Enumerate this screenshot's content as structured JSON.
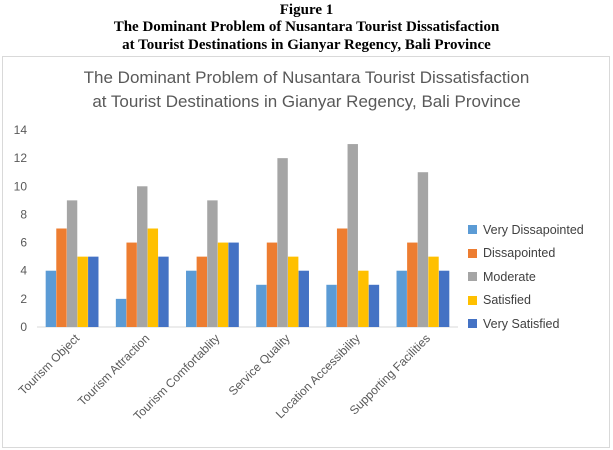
{
  "caption": {
    "figure_label": "Figure 1",
    "line1": "The Dominant Problem of Nusantara Tourist Dissatisfaction",
    "line2": "at Tourist Destinations in Gianyar Regency, Bali Province"
  },
  "chart_data": {
    "type": "bar",
    "title_line1": "The Dominant Problem of Nusantara Tourist Dissatisfaction",
    "title_line2": "at Tourist Destinations in Gianyar Regency, Bali Province",
    "categories": [
      "Tourism Object",
      "Tourism Attraction",
      "Tourism Comfortablity",
      "Service Quality",
      "Location Accessibility",
      "Supporting Facilities"
    ],
    "series": [
      {
        "name": "Very Dissapointed",
        "color": "#5b9bd5",
        "values": [
          4,
          2,
          4,
          3,
          3,
          4
        ]
      },
      {
        "name": "Dissapointed",
        "color": "#ed7d31",
        "values": [
          7,
          6,
          5,
          6,
          7,
          6
        ]
      },
      {
        "name": "Moderate",
        "color": "#a5a5a5",
        "values": [
          9,
          10,
          9,
          12,
          13,
          11
        ]
      },
      {
        "name": "Satisfied",
        "color": "#ffc000",
        "values": [
          5,
          7,
          6,
          5,
          4,
          5
        ]
      },
      {
        "name": "Very Satisfied",
        "color": "#4472c4",
        "values": [
          5,
          5,
          6,
          4,
          3,
          4
        ]
      }
    ],
    "y_ticks": [
      "0",
      "2",
      "4",
      "6",
      "8",
      "10",
      "12",
      "14"
    ],
    "ylim": [
      0,
      14
    ],
    "grid": false,
    "legend_position": "right"
  }
}
